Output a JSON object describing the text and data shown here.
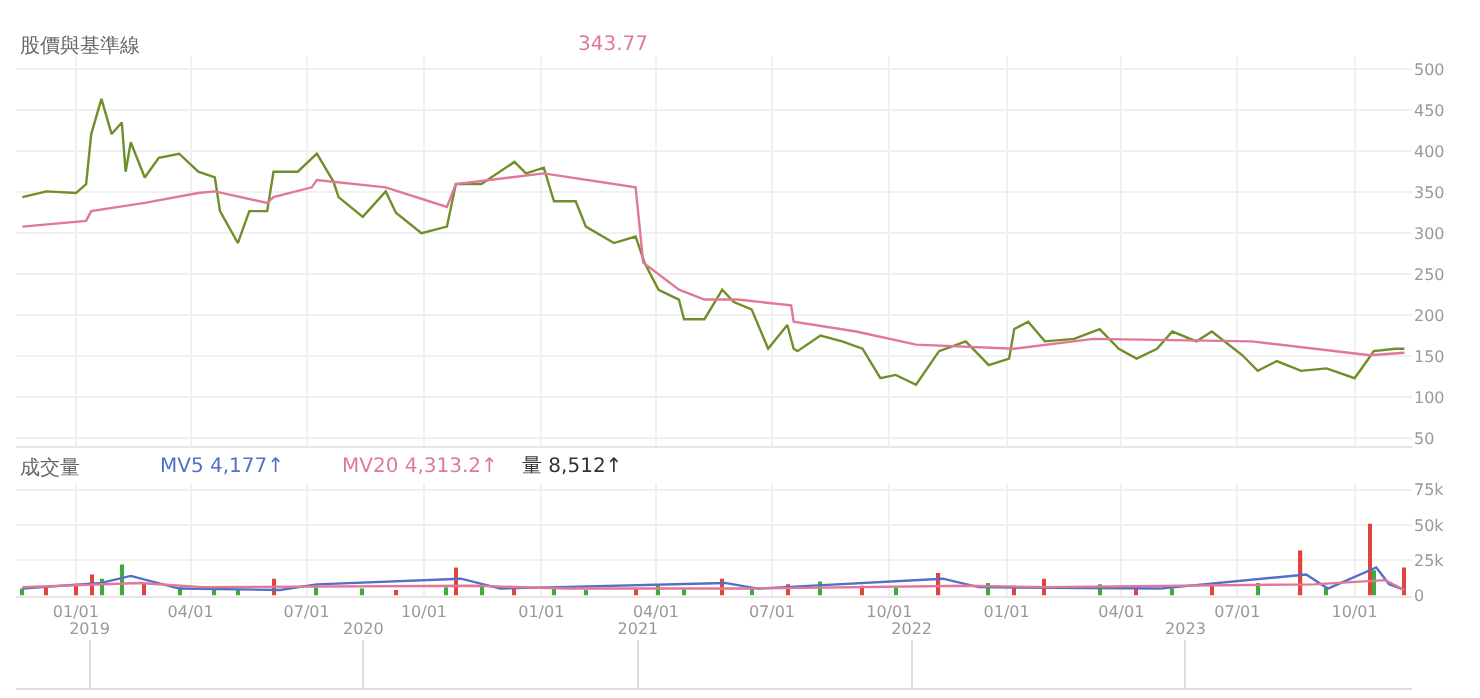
{
  "chart_data": [
    {
      "type": "line",
      "title": "股價與基準線",
      "xlim": [
        "2020-11-15",
        "2023-11-15"
      ],
      "xticks": [
        {
          "value": "2021-01-01",
          "label": null
        },
        {
          "value": "2021-04-01",
          "label": null
        },
        {
          "value": "2021-07-01",
          "label": null
        },
        {
          "value": "2021-10-01",
          "label": null
        },
        {
          "value": "2022-01-01",
          "label": null
        },
        {
          "value": "2022-04-01",
          "label": null
        },
        {
          "value": "2022-07-01",
          "label": null
        },
        {
          "value": "2022-10-01",
          "label": null
        },
        {
          "value": "2023-01-01",
          "label": null
        },
        {
          "value": "2023-04-01",
          "label": null
        },
        {
          "value": "2023-07-01",
          "label": null
        },
        {
          "value": "2023-10-01",
          "label": null
        }
      ],
      "ylim": [
        40,
        515
      ],
      "yticks": [
        50,
        100,
        150,
        200,
        250,
        300,
        350,
        400,
        450,
        500
      ],
      "grid": true,
      "tick_labels": "y",
      "series": [
        {
          "color": "#6f8f2a",
          "x": [
            "2020-11-20",
            "2020-12-09",
            "2021-01-01",
            "2021-01-09",
            "2021-01-13",
            "2021-01-21",
            "2021-01-29",
            "2021-02-06",
            "2021-02-09",
            "2021-02-13",
            "2021-02-24",
            "2021-03-07",
            "2021-03-23",
            "2021-04-07",
            "2021-04-20",
            "2021-04-24",
            "2021-05-08",
            "2021-05-17",
            "2021-05-31",
            "2021-06-05",
            "2021-06-24",
            "2021-07-09",
            "2021-07-22",
            "2021-07-26",
            "2021-08-14",
            "2021-09-01",
            "2021-09-09",
            "2021-09-29",
            "2021-10-19",
            "2021-10-26",
            "2021-11-15",
            "2021-12-11",
            "2021-12-20",
            "2022-01-03",
            "2022-01-11",
            "2022-01-28",
            "2022-02-05",
            "2022-02-27",
            "2022-03-16",
            "2022-03-23",
            "2022-04-03",
            "2022-04-19",
            "2022-04-23",
            "2022-05-09",
            "2022-05-23",
            "2022-06-01",
            "2022-06-15",
            "2022-06-28",
            "2022-07-13",
            "2022-07-18",
            "2022-07-21",
            "2022-08-08",
            "2022-08-25",
            "2022-09-10",
            "2022-09-24",
            "2022-10-06",
            "2022-10-22",
            "2022-11-09",
            "2022-11-30",
            "2022-12-18",
            "2023-01-03",
            "2023-01-07",
            "2023-01-18",
            "2023-01-31",
            "2023-02-23",
            "2023-03-15",
            "2023-03-30",
            "2023-04-13",
            "2023-04-29",
            "2023-05-11",
            "2023-05-30",
            "2023-06-11",
            "2023-07-05",
            "2023-07-17",
            "2023-08-01",
            "2023-08-20",
            "2023-09-09",
            "2023-10-01",
            "2023-10-12",
            "2023-10-16",
            "2023-11-02",
            "2023-11-09"
          ],
          "values": [
            344,
            351,
            349,
            360,
            421,
            464,
            421,
            435,
            375,
            411,
            368,
            392,
            397,
            375,
            368,
            327,
            288,
            327,
            327,
            375,
            375,
            397,
            363,
            344,
            320,
            351,
            325,
            300,
            308,
            360,
            360,
            387,
            373,
            380,
            339,
            339,
            308,
            288,
            296,
            264,
            231,
            219,
            195,
            195,
            231,
            216,
            207,
            159,
            188,
            159,
            156,
            175,
            168,
            159,
            123,
            127,
            115,
            156,
            168,
            139,
            147,
            183,
            192,
            168,
            171,
            183,
            159,
            147,
            159,
            180,
            168,
            180,
            151,
            132,
            144,
            132,
            135,
            123,
            147,
            156,
            159,
            159
          ]
        },
        {
          "name": "343.77",
          "color": "#e0789a",
          "x": [
            "2020-11-20",
            "2021-01-09",
            "2021-01-13",
            "2021-02-24",
            "2021-04-07",
            "2021-04-20",
            "2021-05-31",
            "2021-06-05",
            "2021-07-05",
            "2021-07-09",
            "2021-09-01",
            "2021-10-19",
            "2021-10-26",
            "2022-01-03",
            "2022-03-16",
            "2022-03-22",
            "2022-04-19",
            "2022-05-09",
            "2022-06-04",
            "2022-07-16",
            "2022-07-18",
            "2022-09-05",
            "2022-10-22",
            "2023-01-07",
            "2023-03-10",
            "2023-07-12",
            "2023-10-13",
            "2023-11-09"
          ],
          "values": [
            308,
            315,
            327,
            337,
            349,
            351,
            337,
            344,
            356,
            365,
            356,
            332,
            360,
            373,
            356,
            264,
            231,
            219,
            219,
            212,
            192,
            180,
            164,
            159,
            171,
            168,
            151,
            154
          ]
        }
      ]
    },
    {
      "type": "bar",
      "title": "成交量",
      "xlim": [
        "2020-11-15",
        "2023-11-15"
      ],
      "xticks": [
        {
          "value": "2021-01-01",
          "label": "01/01"
        },
        {
          "value": "2021-04-01",
          "label": "04/01"
        },
        {
          "value": "2021-07-01",
          "label": "07/01"
        },
        {
          "value": "2021-10-01",
          "label": "10/01"
        },
        {
          "value": "2022-01-01",
          "label": "01/01"
        },
        {
          "value": "2022-04-01",
          "label": "04/01"
        },
        {
          "value": "2022-07-01",
          "label": "07/01"
        },
        {
          "value": "2022-10-01",
          "label": "10/01"
        },
        {
          "value": "2023-01-01",
          "label": "01/01"
        },
        {
          "value": "2023-04-01",
          "label": "04/01"
        },
        {
          "value": "2023-07-01",
          "label": "07/01"
        },
        {
          "value": "2023-10-01",
          "label": "10/01"
        }
      ],
      "ylim": [
        0,
        80000
      ],
      "yticks": [
        {
          "value": 0,
          "label": "0"
        },
        {
          "value": 25000,
          "label": "25k"
        },
        {
          "value": 50000,
          "label": "50k"
        },
        {
          "value": 75000,
          "label": "75k"
        }
      ],
      "grid": true,
      "series": [
        {
          "type": "bar",
          "x": [
            "2020-11-20",
            "2020-12-09",
            "2021-01-01",
            "2021-01-13",
            "2021-01-21",
            "2021-02-06",
            "2021-02-24",
            "2021-03-23",
            "2021-04-20",
            "2021-05-08",
            "2021-06-05",
            "2021-07-09",
            "2021-08-14",
            "2021-09-09",
            "2021-10-19",
            "2021-10-26",
            "2021-11-15",
            "2021-12-11",
            "2022-01-11",
            "2022-02-05",
            "2022-03-16",
            "2022-04-03",
            "2022-04-23",
            "2022-05-23",
            "2022-06-15",
            "2022-07-13",
            "2022-08-08",
            "2022-09-10",
            "2022-10-06",
            "2022-11-09",
            "2022-12-18",
            "2023-01-07",
            "2023-01-31",
            "2023-03-15",
            "2023-04-13",
            "2023-05-11",
            "2023-06-11",
            "2023-07-17",
            "2023-08-20",
            "2023-09-09",
            "2023-10-13",
            "2023-10-16",
            "2023-11-09"
          ],
          "values": [
            5000,
            6000,
            8000,
            15000,
            12000,
            22000,
            9000,
            6000,
            5000,
            4000,
            12000,
            6000,
            5000,
            4000,
            6000,
            20000,
            8000,
            6000,
            5000,
            4000,
            5000,
            7000,
            5000,
            12000,
            6000,
            8000,
            10000,
            7000,
            6000,
            16000,
            9000,
            7000,
            12000,
            8000,
            6000,
            5000,
            7000,
            9000,
            32000,
            6000,
            51000,
            18000,
            20000
          ],
          "colors": [
            "#3dab3d",
            "#e0443c",
            "#e0443c",
            "#e0443c",
            "#3dab3d",
            "#3dab3d",
            "#e0443c",
            "#3dab3d",
            "#3dab3d",
            "#3dab3d",
            "#e0443c",
            "#3dab3d",
            "#3dab3d",
            "#e0443c",
            "#3dab3d",
            "#e0443c",
            "#3dab3d",
            "#e0443c",
            "#3dab3d",
            "#3dab3d",
            "#e0443c",
            "#3dab3d",
            "#3dab3d",
            "#e0443c",
            "#3dab3d",
            "#e0443c",
            "#3dab3d",
            "#e0443c",
            "#3dab3d",
            "#e0443c",
            "#3dab3d",
            "#e0443c",
            "#e0443c",
            "#3dab3d",
            "#e0443c",
            "#3dab3d",
            "#e0443c",
            "#3dab3d",
            "#e0443c",
            "#3dab3d",
            "#e0443c",
            "#3dab3d",
            "#e0443c"
          ]
        },
        {
          "name": "MV5 4,177↑",
          "type": "line",
          "color": "#5470c6",
          "x": [
            "2020-11-20",
            "2021-01-21",
            "2021-02-13",
            "2021-03-23",
            "2021-06-10",
            "2021-07-09",
            "2021-10-30",
            "2021-11-30",
            "2022-05-25",
            "2022-06-20",
            "2022-11-12",
            "2022-12-10",
            "2023-05-01",
            "2023-08-24",
            "2023-09-10",
            "2023-10-18",
            "2023-10-28",
            "2023-11-09"
          ],
          "values": [
            5000,
            9000,
            14000,
            5000,
            4000,
            8000,
            12000,
            5000,
            9000,
            5000,
            12000,
            6000,
            5000,
            15000,
            5000,
            20000,
            8000,
            4000
          ]
        },
        {
          "name": "MV20 4,313.2↑",
          "type": "line",
          "color": "#e0789a",
          "x": [
            "2020-11-20",
            "2021-02-20",
            "2021-04-10",
            "2021-11-10",
            "2022-01-20",
            "2022-06-10",
            "2022-12-01",
            "2023-02-01",
            "2023-08-30",
            "2023-10-25",
            "2023-11-09"
          ],
          "values": [
            6000,
            9000,
            6000,
            7000,
            5000,
            5000,
            7000,
            6000,
            8000,
            11000,
            4000
          ]
        }
      ],
      "annotations": [
        "量 8,512↑"
      ],
      "x2lim": [
        "2018-09-25",
        "2023-10-30"
      ],
      "x2ticks": [
        {
          "value": "2019-01-01",
          "label": "2019"
        },
        {
          "value": "2020-01-01",
          "label": "2020"
        },
        {
          "value": "2021-01-01",
          "label": "2021"
        },
        {
          "value": "2022-01-01",
          "label": "2022"
        },
        {
          "value": "2023-01-01",
          "label": "2023"
        }
      ]
    }
  ]
}
